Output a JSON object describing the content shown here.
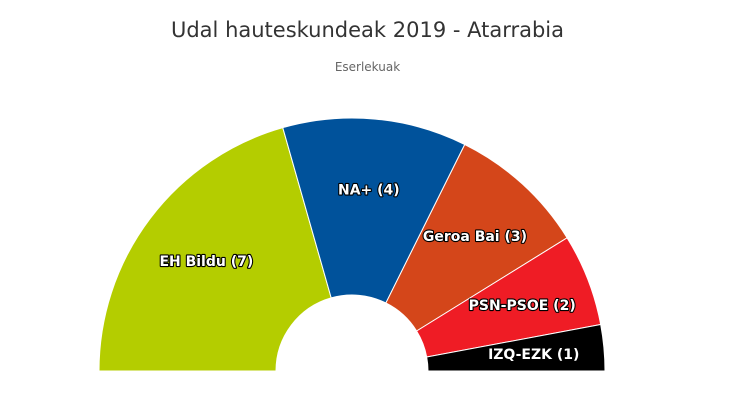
{
  "chart_data": {
    "type": "pie",
    "variant": "semicircle",
    "title": "Udal hauteskundeak 2019 - Atarrabia",
    "subtitle": "Eserlekuak",
    "series": [
      {
        "categories": [
          "EH Bildu",
          "NA+",
          "Geroa Bai",
          "PSN-PSOE",
          "IZQ-EZK"
        ],
        "values": [
          7,
          4,
          3,
          2,
          1
        ],
        "colors": [
          "#b4cd00",
          "#00529b",
          "#d4461a",
          "#ef1c25",
          "#000000"
        ],
        "labels": [
          "EH Bildu (7)",
          "NA+ (4)",
          "Geroa Bai (3)",
          "PSN-PSOE (2)",
          "IZQ-EZK (1)"
        ]
      }
    ]
  }
}
